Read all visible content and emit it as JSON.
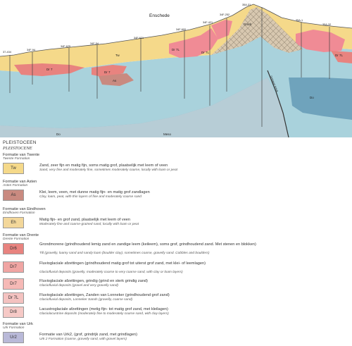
{
  "section": {
    "place": "Enschede",
    "well_labels": [
      "37-434",
      "34F-94",
      "34F-625",
      "34F-54",
      "34F-621",
      "34F-600",
      "34F-421",
      "34F-252",
      "35A-31",
      "35A-1",
      "35A-32"
    ],
    "unit_labels": {
      "tw": "Tw",
      "as1": "As",
      "dr7a": "Dr 7",
      "dr7b": "Dr 7",
      "dr7c": "Dr 7L",
      "dr7d": "Dr 7L",
      "dr7e": "Dr 7L",
      "gmdr": "Gmdr",
      "do1": "Do",
      "do2": "Do",
      "me": "Meso",
      "fault": "Gronauer breuk"
    }
  },
  "legend": {
    "period": "PLEISTOCEEN",
    "period_en": "PLEISTOCENE",
    "groups": [
      {
        "formation": "Formatie van Twente",
        "formation_en": "Twente Formation",
        "units": [
          {
            "code": "Tw",
            "color": "#f5d98a",
            "nl": "Zand, zeer fijn en matig fijn, soms matig grof, plaatselijk met leem of veen",
            "en": "Sand, very fine and moderately fine, sometimes moderately coarse, locally with loam or peat"
          }
        ]
      },
      {
        "formation": "Formatie van Asten",
        "formation_en": "Asten Formation",
        "units": [
          {
            "code": "As",
            "color": "#c98a80",
            "nl": "Klei, leem, veen, met dunne matig fijn- en matig grof zandlagen",
            "en": "Clay, loam, peat, with thin layers of fine and moderately coarse sand"
          }
        ]
      },
      {
        "formation": "Formatie van Eindhoven",
        "formation_en": "Eindhoven Formation",
        "units": [
          {
            "code": "Eh",
            "color": "#f3d79a",
            "nl": "Matig fijn- en grof zand, plaatselijk met leem of veen",
            "en": "Moderately fine and coarse-grained sand, locally with loam or peat"
          }
        ]
      },
      {
        "formation": "Formatie van Drente",
        "formation_en": "Drente Formation",
        "units": [
          {
            "code": "Dr6",
            "color": "#e8837f",
            "nl": "Grondmorene (grindhoudend lemig zand en zandige leem (keileem), soms grof, grindhoudend zand. Met stenen en blokken)",
            "en": "Till (gravelly, loamy sand and sandy loam (boulder clay), sometimes coarse, gravelly sand. Cobbles and boulders)"
          },
          {
            "code": "Dr7",
            "color": "#f0a5a3",
            "nl": "Fluvioglaciale afzettingen (grindhoudend matig grof tot uiterst grof zand, met klei- of leemlagen)",
            "en": "Glaciofluvial deposits (gravelly, moderately coarse to very coarse sand, with clay or loam layers)"
          },
          {
            "code": "Dr7",
            "color": "#f6b9b6",
            "nl": "Fluvioglaciale afzettingen, grindig (grind en sterk grindig zand)",
            "en": "Glaciofluvial deposits (gravel and very gravelly sand)"
          },
          {
            "code": "Dr 7L",
            "color": "#f4c2c0",
            "nl": "Fluvioglaciale afzettingen, Zanden van Lonneker (grindhoudend grof zand)",
            "en": "Glaciofluvial deposits, Lonneker Sands (gravelly, coarse sand)"
          },
          {
            "code": "Dr8",
            "color": "#f6c9c6",
            "nl": "Lacustroglaciale afzettingen (metig fijn- tot matig grof zand, met kleilagen)",
            "en": "Glaciolacustrine deposits (moderately fine to moderately coarse sand, with clay layers)"
          }
        ]
      },
      {
        "formation": "Formatie van Urk",
        "formation_en": "Urk Formation",
        "units": [
          {
            "code": "Ur2",
            "color": "#b9b9d8",
            "nl": "Formatie van Urk2, (grof, grindrijk zand, met grindlagen)",
            "en": "Urk 2 Formation (coarse, gravelly sand, with gravel layers)"
          }
        ]
      }
    ]
  }
}
